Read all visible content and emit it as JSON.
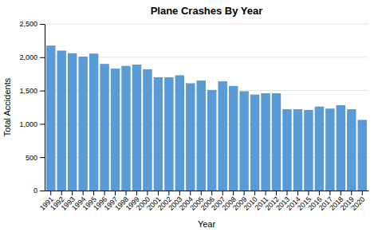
{
  "chart_data": {
    "type": "bar",
    "title": "Plane Crashes By Year",
    "xlabel": "Year",
    "ylabel": "Total Accidents",
    "categories": [
      "1991",
      "1992",
      "1993",
      "1994",
      "1995",
      "1996",
      "1997",
      "1998",
      "1999",
      "2000",
      "2001",
      "2002",
      "2003",
      "2004",
      "2005",
      "2006",
      "2007",
      "2008",
      "2009",
      "2010",
      "2011",
      "2012",
      "2013",
      "2014",
      "2015",
      "2016",
      "2017",
      "2018",
      "2019",
      "2020"
    ],
    "values": [
      2175,
      2100,
      2060,
      2010,
      2055,
      1900,
      1830,
      1870,
      1890,
      1820,
      1700,
      1700,
      1730,
      1610,
      1650,
      1510,
      1640,
      1570,
      1490,
      1440,
      1460,
      1460,
      1220,
      1220,
      1210,
      1260,
      1230,
      1280,
      1220,
      1060
    ],
    "color": "#5B9BD5",
    "ylim": [
      0,
      2500
    ],
    "yticks": [
      0,
      500,
      {
        "value": 1000,
        "label": "1,000"
      },
      {
        "value": 1500,
        "label": "1,500"
      },
      {
        "value": 2000,
        "label": "2,000"
      },
      {
        "value": 2500,
        "label": "2,500"
      }
    ],
    "grid": true
  }
}
